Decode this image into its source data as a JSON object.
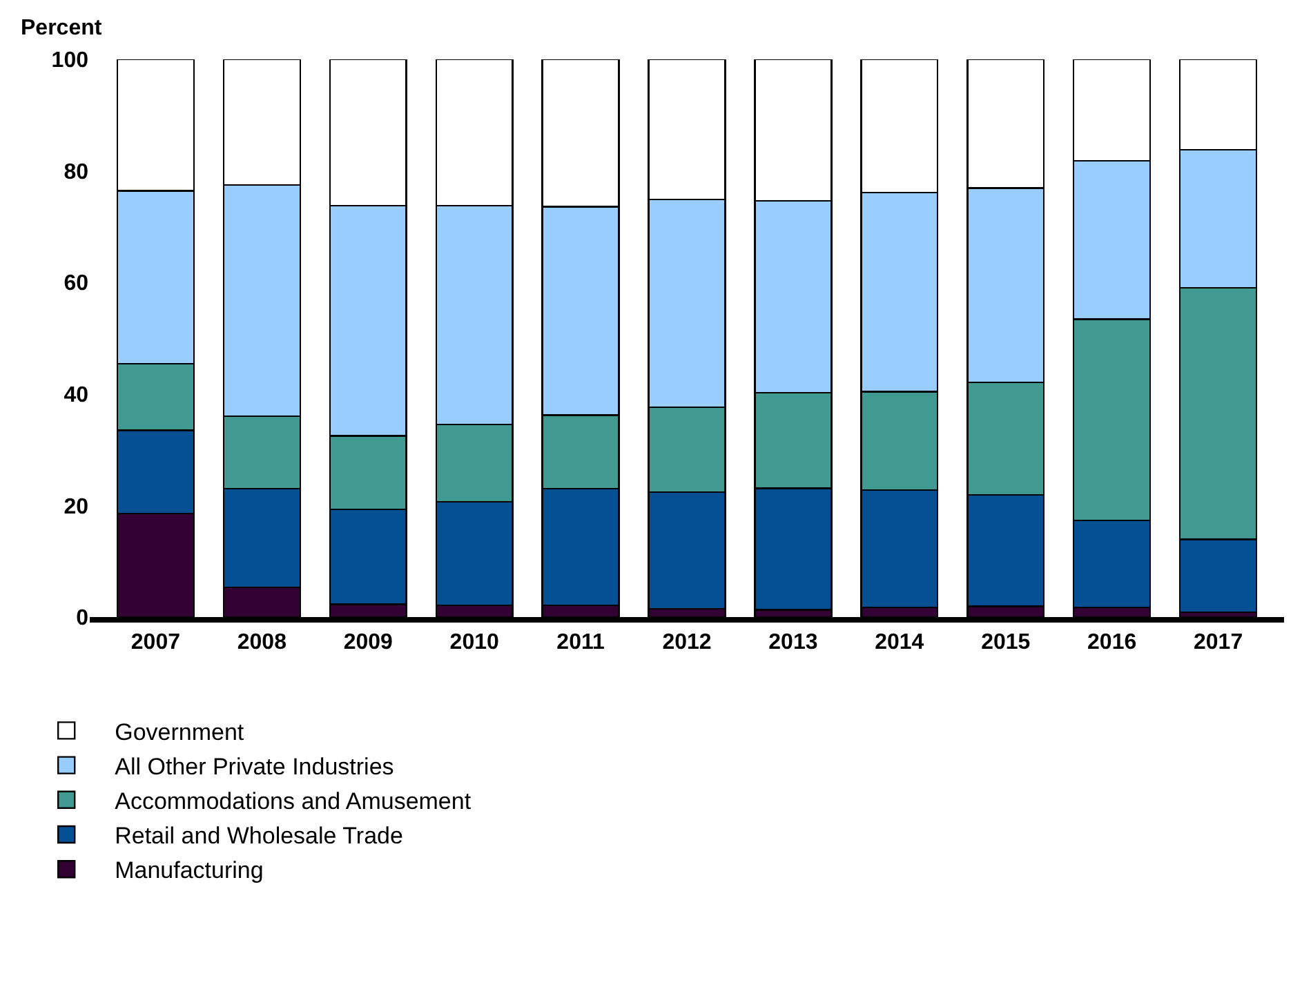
{
  "chart_data": {
    "type": "bar",
    "stacked": true,
    "ylabel": "Percent",
    "categories": [
      "2007",
      "2008",
      "2009",
      "2010",
      "2011",
      "2012",
      "2013",
      "2014",
      "2015",
      "2016",
      "2017"
    ],
    "series": [
      {
        "name": "Manufacturing",
        "color": "#330033",
        "values": [
          18.6,
          5.3,
          2.3,
          2.1,
          2.1,
          1.5,
          1.3,
          1.7,
          1.9,
          1.7,
          0.9
        ]
      },
      {
        "name": "Retail and Wholesale Trade",
        "color": "#045092",
        "values": [
          14.9,
          17.7,
          17.0,
          18.6,
          20.9,
          20.9,
          21.8,
          21.1,
          20.0,
          15.6,
          13.0
        ]
      },
      {
        "name": "Accommodations and Amusement",
        "color": "#419a92",
        "values": [
          11.9,
          13.0,
          13.2,
          13.8,
          13.2,
          15.2,
          17.1,
          17.6,
          20.2,
          36.1,
          45.1
        ]
      },
      {
        "name": "All Other Private Industries",
        "color": "#99ccff",
        "values": [
          31.0,
          41.5,
          41.3,
          39.3,
          37.4,
          37.3,
          34.4,
          35.7,
          34.8,
          28.4,
          24.8
        ]
      },
      {
        "name": "Government",
        "color": "#ffffff",
        "values": [
          23.6,
          22.5,
          26.2,
          26.2,
          26.4,
          25.1,
          25.4,
          23.9,
          23.1,
          18.2,
          16.2
        ]
      }
    ],
    "ylim": [
      0,
      100
    ],
    "yticks": [
      0,
      20,
      40,
      60,
      80,
      100
    ],
    "legend": "bottom left"
  }
}
